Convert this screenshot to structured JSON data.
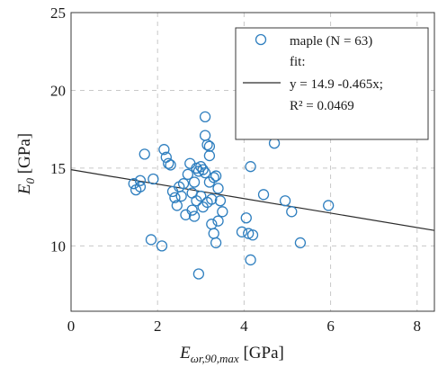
{
  "chart_data": {
    "type": "scatter",
    "xlim": [
      0,
      8.4
    ],
    "ylim": [
      5.8,
      25
    ],
    "x_ticks": [
      0,
      2,
      4,
      6,
      8
    ],
    "y_ticks": [
      10,
      15,
      20,
      25
    ],
    "grid": true,
    "legend_position": "top-right",
    "xlabel": {
      "main": "E",
      "sub": "ωr,90,max",
      "unit": " [GPa]"
    },
    "ylabel": {
      "main": "E",
      "sub": "0",
      "unit": " [GPa]"
    },
    "series": [
      {
        "name": "maple (N = 63)",
        "marker": "circle-open",
        "color": "#2f7fbf",
        "points": [
          [
            1.45,
            14.0
          ],
          [
            1.5,
            13.6
          ],
          [
            1.6,
            13.8
          ],
          [
            1.6,
            14.2
          ],
          [
            1.7,
            15.9
          ],
          [
            1.85,
            10.4
          ],
          [
            1.9,
            14.3
          ],
          [
            2.1,
            10.0
          ],
          [
            2.15,
            16.2
          ],
          [
            2.2,
            15.7
          ],
          [
            2.25,
            15.3
          ],
          [
            2.3,
            15.2
          ],
          [
            2.35,
            13.5
          ],
          [
            2.4,
            13.1
          ],
          [
            2.45,
            12.6
          ],
          [
            2.5,
            13.8
          ],
          [
            2.55,
            13.2
          ],
          [
            2.6,
            14.0
          ],
          [
            2.65,
            12.0
          ],
          [
            2.7,
            14.6
          ],
          [
            2.75,
            15.3
          ],
          [
            2.8,
            12.3
          ],
          [
            2.8,
            13.4
          ],
          [
            2.85,
            14.1
          ],
          [
            2.9,
            15.0
          ],
          [
            2.9,
            12.9
          ],
          [
            2.95,
            14.8
          ],
          [
            2.95,
            8.2
          ],
          [
            3.0,
            15.1
          ],
          [
            3.0,
            13.2
          ],
          [
            3.05,
            14.9
          ],
          [
            3.05,
            12.5
          ],
          [
            3.1,
            14.7
          ],
          [
            3.1,
            18.3
          ],
          [
            3.1,
            17.1
          ],
          [
            3.15,
            16.5
          ],
          [
            3.15,
            12.8
          ],
          [
            3.2,
            16.4
          ],
          [
            3.2,
            15.8
          ],
          [
            3.2,
            14.1
          ],
          [
            3.25,
            13.0
          ],
          [
            3.25,
            11.4
          ],
          [
            3.3,
            14.4
          ],
          [
            3.3,
            10.8
          ],
          [
            3.35,
            14.5
          ],
          [
            3.35,
            10.2
          ],
          [
            3.4,
            11.6
          ],
          [
            3.4,
            13.7
          ],
          [
            3.45,
            12.9
          ],
          [
            3.95,
            10.9
          ],
          [
            4.05,
            11.8
          ],
          [
            4.1,
            10.8
          ],
          [
            4.15,
            9.1
          ],
          [
            4.15,
            15.1
          ],
          [
            4.2,
            10.7
          ],
          [
            4.45,
            13.3
          ],
          [
            4.7,
            16.6
          ],
          [
            4.95,
            12.9
          ],
          [
            5.1,
            12.2
          ],
          [
            5.3,
            10.2
          ],
          [
            5.95,
            12.6
          ],
          [
            3.5,
            12.2
          ],
          [
            2.85,
            11.9
          ]
        ]
      }
    ],
    "fit": {
      "label": "fit:",
      "equation": "y = 14.9  -0.465x;",
      "r2": "R² = 0.0469",
      "intercept": 14.9,
      "slope": -0.465,
      "color": "#2b2b2b"
    }
  }
}
